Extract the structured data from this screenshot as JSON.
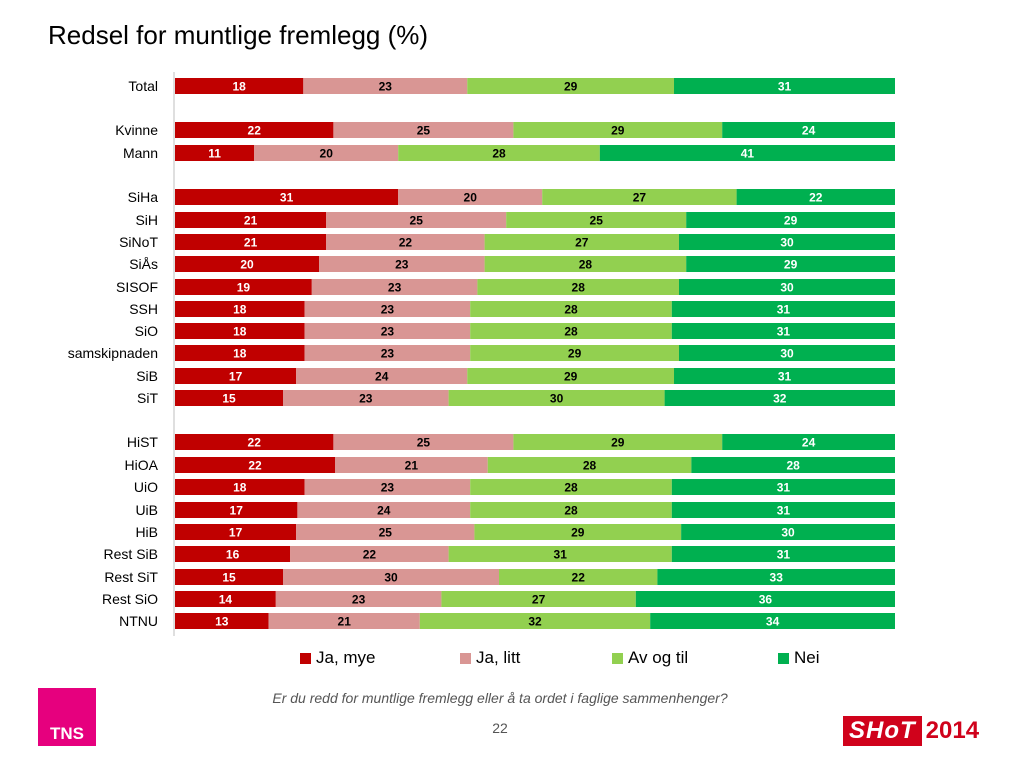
{
  "title": "Redsel for muntlige fremlegg (%)",
  "question": "Er du redd for muntlige fremlegg eller å ta ordet i faglige sammenhenger?",
  "page_number": "22",
  "logos": {
    "tns": "TNS",
    "shot": "SHoT",
    "shot_year": "2014"
  },
  "colors": {
    "ja_mye": "#c00000",
    "ja_litt": "#d99694",
    "av_og_til": "#92d050",
    "nei": "#00b050"
  },
  "chart_data": {
    "type": "bar",
    "orientation": "horizontal",
    "stacked": true,
    "legend_position": "bottom",
    "categories": [
      "Total",
      "Kvinne",
      "Mann",
      "SiHa",
      "SiH",
      "SiNoT",
      "SiÅs",
      "SISOF",
      "SSH",
      "SiO",
      "samskipnaden",
      "SiB",
      "SiT",
      "HiST",
      "HiOA",
      "UiO",
      "UiB",
      "HiB",
      "Rest SiB",
      "Rest SiT",
      "Rest SiO",
      "NTNU"
    ],
    "groups": [
      [
        "Total"
      ],
      [
        "Kvinne",
        "Mann"
      ],
      [
        "SiHa",
        "SiH",
        "SiNoT",
        "SiÅs",
        "SISOF",
        "SSH",
        "SiO",
        "samskipnaden",
        "SiB",
        "SiT"
      ],
      [
        "HiST",
        "HiOA",
        "UiO",
        "UiB",
        "HiB",
        "Rest SiB",
        "Rest SiT",
        "Rest SiO",
        "NTNU"
      ]
    ],
    "series": [
      {
        "name": "Ja, mye",
        "values": [
          18,
          22,
          11,
          31,
          21,
          21,
          20,
          19,
          18,
          18,
          18,
          17,
          15,
          22,
          22,
          18,
          17,
          17,
          16,
          15,
          14,
          13
        ]
      },
      {
        "name": "Ja, litt",
        "values": [
          23,
          25,
          20,
          20,
          25,
          22,
          23,
          23,
          23,
          23,
          23,
          24,
          23,
          25,
          21,
          23,
          24,
          25,
          22,
          30,
          23,
          21
        ]
      },
      {
        "name": "Av og til",
        "values": [
          29,
          29,
          28,
          27,
          25,
          27,
          28,
          28,
          28,
          28,
          29,
          29,
          30,
          29,
          28,
          28,
          28,
          29,
          31,
          22,
          27,
          32
        ]
      },
      {
        "name": "Nei",
        "values": [
          31,
          24,
          41,
          22,
          29,
          30,
          29,
          30,
          31,
          31,
          30,
          31,
          32,
          24,
          28,
          31,
          31,
          30,
          31,
          33,
          36,
          34
        ]
      }
    ]
  }
}
